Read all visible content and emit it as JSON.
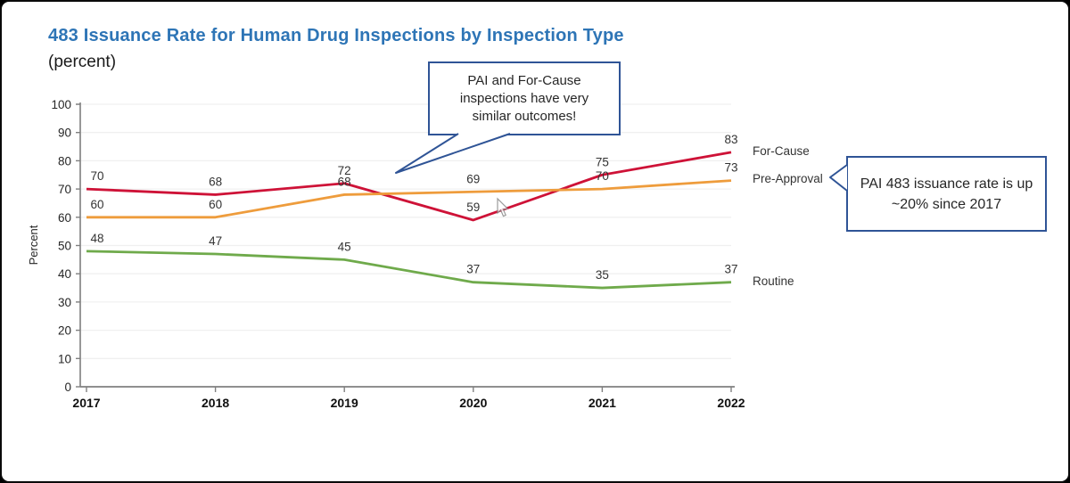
{
  "title": "483 Issuance Rate for Human Drug Inspections by Inspection Type",
  "subtitle": "(percent)",
  "callouts": {
    "top": {
      "lines": [
        "PAI and For-Cause",
        "inspections have very",
        "similar outcomes!"
      ]
    },
    "right": {
      "lines": [
        "PAI 483 issuance rate is up",
        "~20% since 2017"
      ]
    }
  },
  "colors": {
    "title": "#2E75B6",
    "callout_border": "#2F5496",
    "for_cause": "#CE1237",
    "pre_approval": "#EE9C3C",
    "routine": "#6FAA4B",
    "axis": "#7f7f7f",
    "grid": "#f0f0f0",
    "tick_label": "#262626",
    "data_label": "#333333"
  },
  "chart_data": {
    "type": "line",
    "x": [
      "2017",
      "2018",
      "2019",
      "2020",
      "2021",
      "2022"
    ],
    "series": [
      {
        "name": "For-Cause",
        "color_key": "for_cause",
        "values": [
          70,
          68,
          72,
          59,
          75,
          83
        ]
      },
      {
        "name": "Pre-Approval",
        "color_key": "pre_approval",
        "values": [
          60,
          60,
          68,
          69,
          70,
          73
        ]
      },
      {
        "name": "Routine",
        "color_key": "routine",
        "values": [
          48,
          47,
          45,
          37,
          35,
          37
        ]
      }
    ],
    "ylabel": "Percent",
    "ylim": [
      0,
      100
    ],
    "ytick_step": 10,
    "grid": true,
    "data_labels": true,
    "legend_position": "right-of-line-ends"
  }
}
